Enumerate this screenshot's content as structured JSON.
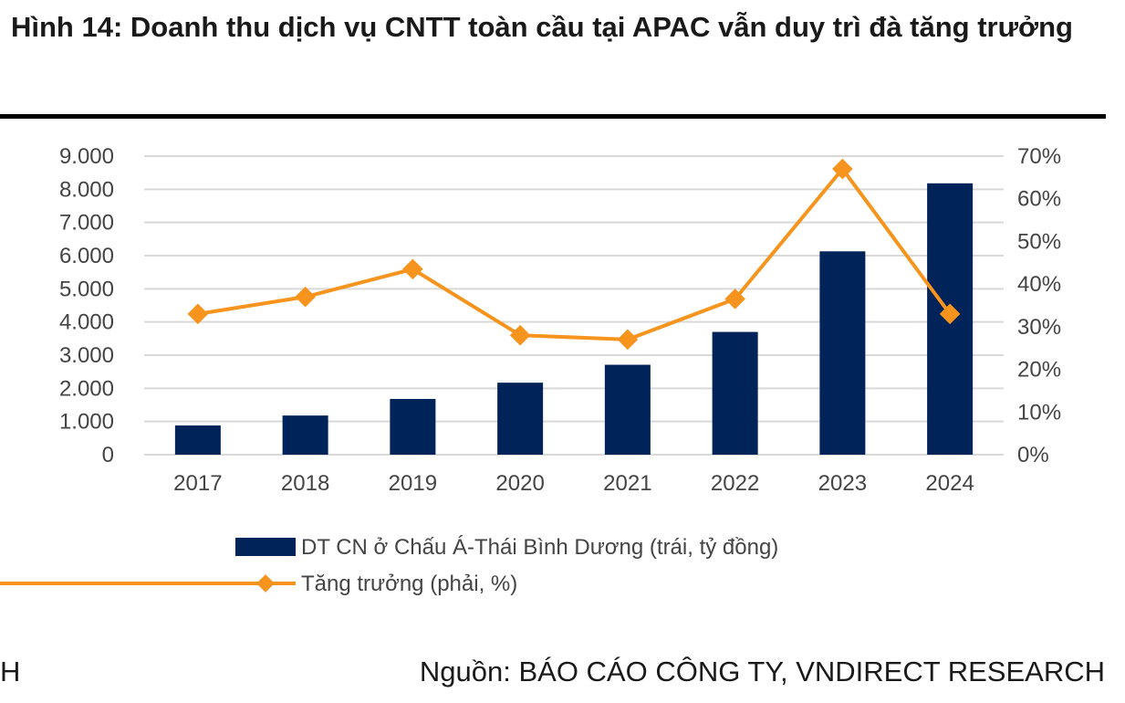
{
  "title": "Hình 14: Doanh thu dịch vụ CNTT toàn cầu tại APAC vẫn duy trì đà tăng trưởng",
  "footer": {
    "left": "H",
    "source": "Nguồn: BÁO CÁO CÔNG TY, VNDIRECT RESEARCH"
  },
  "chart_data": {
    "type": "bar+line",
    "categories": [
      "2017",
      "2018",
      "2019",
      "2020",
      "2021",
      "2022",
      "2023",
      "2024"
    ],
    "series": [
      {
        "name": "DT CN ở Chấu Á-Thái Bình Dương (trái, tỷ đồng)",
        "type": "bar",
        "axis": "left",
        "color": "#002359",
        "values": [
          880,
          1180,
          1680,
          2170,
          2710,
          3700,
          6130,
          8180
        ]
      },
      {
        "name": "Tăng trưởng (phải, %)",
        "type": "line",
        "axis": "right",
        "color": "#F7941D",
        "values": [
          33,
          37,
          43.5,
          28,
          27,
          36.5,
          67,
          33
        ]
      }
    ],
    "left_axis": {
      "ylim": [
        0,
        9000
      ],
      "ticks": [
        "0",
        "1.000",
        "2.000",
        "3.000",
        "4.000",
        "5.000",
        "6.000",
        "7.000",
        "8.000",
        "9.000"
      ]
    },
    "right_axis": {
      "ylim": [
        0,
        70
      ],
      "ticks": [
        "0%",
        "10%",
        "20%",
        "30%",
        "40%",
        "50%",
        "60%",
        "70%"
      ]
    },
    "grid": true,
    "legend_position": "bottom"
  }
}
